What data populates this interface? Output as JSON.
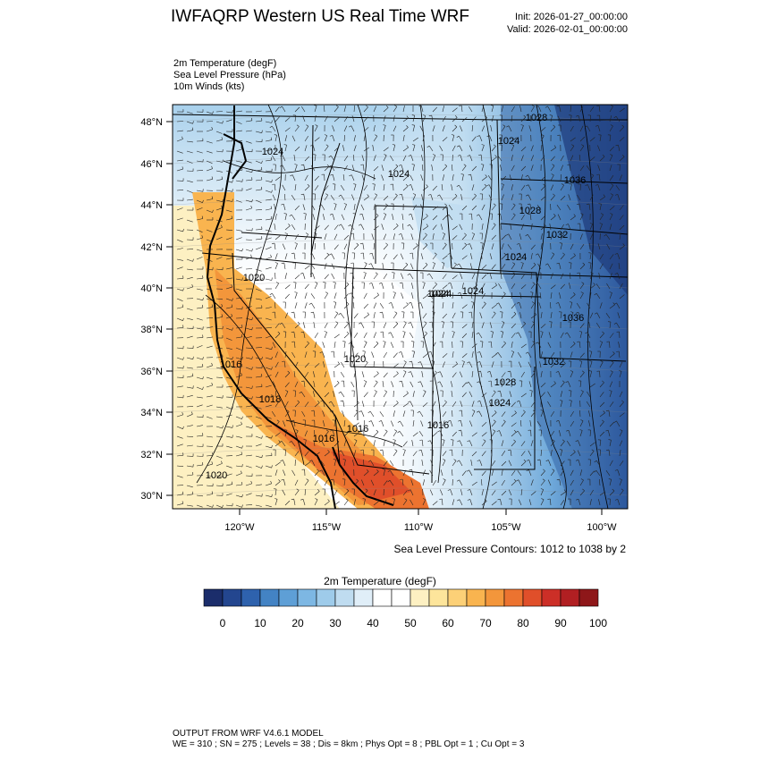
{
  "header": {
    "title": "IWFAQRP Western US Real Time WRF",
    "init": "Init: 2026-01-27_00:00:00",
    "valid": "Valid: 2026-02-01_00:00:00"
  },
  "fields": [
    "2m Temperature   (degF)",
    "Sea Level Pressure   (hPa)",
    "10m Winds   (kts)"
  ],
  "map": {
    "lat_ticks": [
      "48°N",
      "46°N",
      "44°N",
      "42°N",
      "40°N",
      "38°N",
      "36°N",
      "34°N",
      "32°N",
      "30°N"
    ],
    "lon_ticks": [
      "120°W",
      "115°W",
      "110°W",
      "105°W",
      "100°W"
    ],
    "contour_labels": [
      "1028",
      "1024",
      "1024",
      "1024",
      "1036",
      "1028",
      "1032",
      "1024",
      "1024",
      "1020",
      "1024",
      "1024",
      "1036",
      "1020",
      "1032",
      "1028",
      "1016",
      "1018",
      "1024",
      "1016",
      "1016",
      "1020",
      "1016"
    ],
    "palette": [
      "#1b2d6b",
      "#23468f",
      "#2e62ad",
      "#4383c4",
      "#5e9fd6",
      "#7db7e3",
      "#9ecbea",
      "#bfdcf0",
      "#e0eef8",
      "#ffffff",
      "#ffffff",
      "#fdf0c2",
      "#fde59b",
      "#fcd077",
      "#f9b44f",
      "#f3963b",
      "#ec7330",
      "#e04f2a",
      "#cc2f27",
      "#b11f22",
      "#8e1719"
    ]
  },
  "contour_note": "Sea Level Pressure Contours: 1012 to 1038 by 2",
  "colorbar": {
    "title": "2m Temperature  (degF)",
    "labels": [
      "0",
      "10",
      "20",
      "30",
      "40",
      "50",
      "60",
      "70",
      "80",
      "90",
      "100"
    ]
  },
  "footer": {
    "line1": "OUTPUT FROM WRF V4.6.1 MODEL",
    "line2": "WE = 310 ; SN = 275 ; Levels = 38 ; Dis = 8km ; Phys Opt = 8 ; PBL Opt = 1 ; Cu Opt = 3"
  }
}
